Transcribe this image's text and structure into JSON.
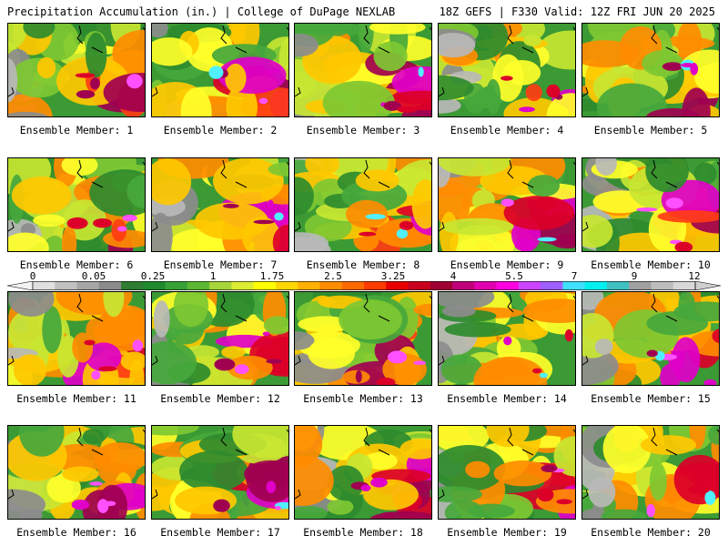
{
  "header": {
    "left": "Precipitation Accumulation (in.) | College of DuPage NEXLAB",
    "right": "18Z GEFS | F330 Valid: 12Z FRI JUN 20 2025"
  },
  "members_label_prefix": "Ensemble Member:",
  "members": [
    1,
    2,
    3,
    4,
    5,
    6,
    7,
    8,
    9,
    10,
    11,
    12,
    13,
    14,
    15,
    16,
    17,
    18,
    19,
    20
  ],
  "colorbar": {
    "tick_labels": [
      "0",
      "0.05",
      "0.25",
      "1",
      "1.75",
      "2.5",
      "3.25",
      "4",
      "5.5",
      "7",
      "9",
      "12"
    ],
    "colors": [
      "#e0e0e0",
      "#c0c0c0",
      "#a6a6a6",
      "#8b8b8b",
      "#2e7d32",
      "#1f8a2e",
      "#37a138",
      "#5cb833",
      "#a7d53a",
      "#dcec32",
      "#ffff00",
      "#ffd700",
      "#ffb000",
      "#ff8c00",
      "#ff6a00",
      "#ff3c00",
      "#e80000",
      "#c8001e",
      "#a00032",
      "#c0007a",
      "#e000b0",
      "#ff00e0",
      "#cc44ff",
      "#a060ff",
      "#40e0ff",
      "#00f0f0",
      "#40c0c0",
      "#a0a0a0",
      "#bdbdbd",
      "#d8d8d8"
    ]
  },
  "field_colors": [
    "#b8b8b8",
    "#8c8c8c",
    "#2e8b2e",
    "#46a83c",
    "#7ec832",
    "#c8e632",
    "#ffff2a",
    "#ffc800",
    "#ff8c00",
    "#ff3c14",
    "#dc0028",
    "#a00050",
    "#e000c8",
    "#ff50ff",
    "#50f0ff"
  ]
}
